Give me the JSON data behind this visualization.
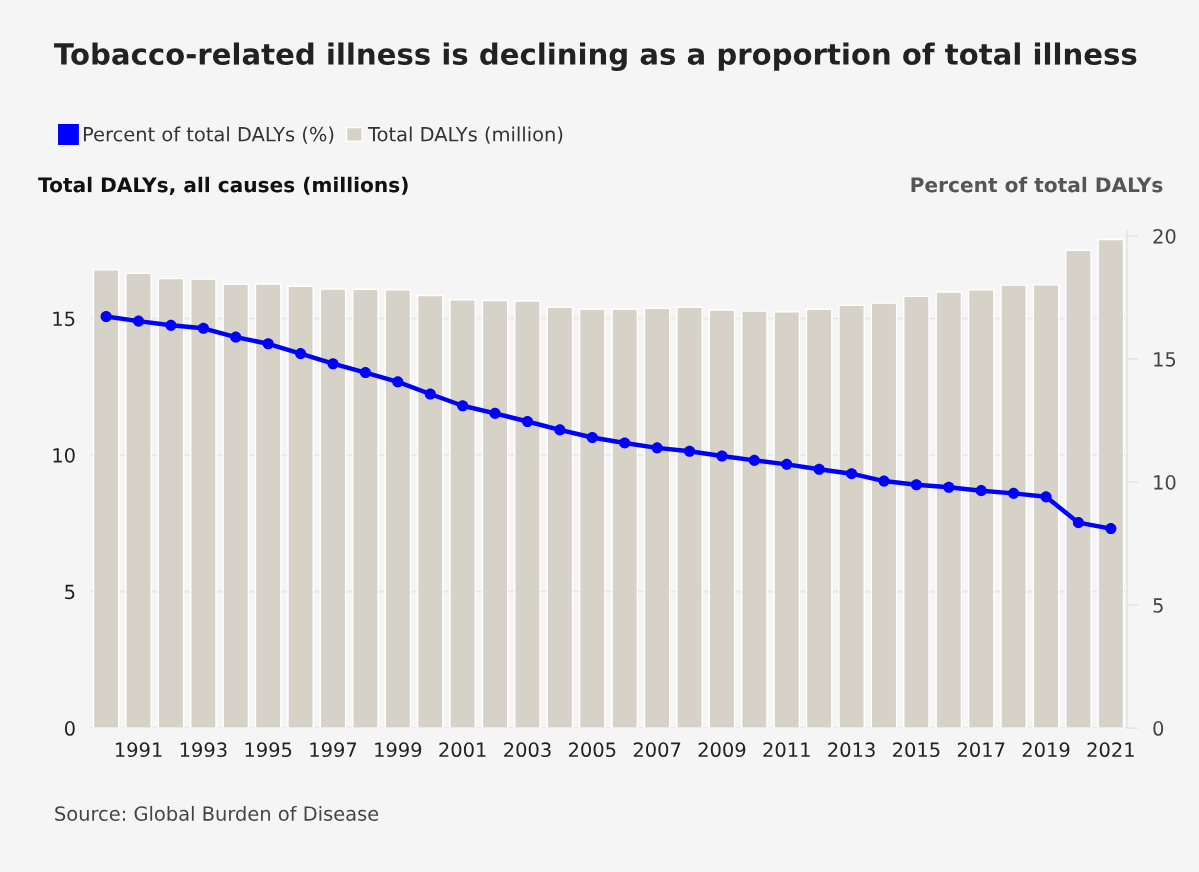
{
  "chart_data": {
    "type": "bar",
    "title": "Tobacco-related illness is declining as a proportion of total illness",
    "ylabel": "Total DALYs, all causes (millions)",
    "y2label": "Percent of total DALYs",
    "x": [
      1990,
      1991,
      1992,
      1993,
      1994,
      1995,
      1996,
      1997,
      1998,
      1999,
      2000,
      2001,
      2002,
      2003,
      2004,
      2005,
      2006,
      2007,
      2008,
      2009,
      2010,
      2011,
      2012,
      2013,
      2014,
      2015,
      2016,
      2017,
      2018,
      2019,
      2020,
      2021
    ],
    "xlim": [
      1989.5,
      2021.5
    ],
    "xticks": [
      1991,
      1993,
      1995,
      1997,
      1999,
      2001,
      2003,
      2005,
      2007,
      2009,
      2011,
      2013,
      2015,
      2017,
      2019,
      2021
    ],
    "ylim": [
      0,
      18.2
    ],
    "yticks": [
      0,
      5,
      10,
      15
    ],
    "y2lim": [
      0,
      20.2
    ],
    "y2ticks": [
      0,
      5,
      10,
      15,
      20
    ],
    "series": [
      {
        "name": "Percent of total DALYs (%)",
        "type": "line",
        "axis": "y2",
        "color": "#0000ff",
        "values": [
          16.73,
          16.54,
          16.37,
          16.25,
          15.89,
          15.62,
          15.22,
          14.81,
          14.45,
          14.07,
          13.58,
          13.1,
          12.79,
          12.46,
          12.12,
          11.81,
          11.59,
          11.39,
          11.25,
          11.06,
          10.88,
          10.72,
          10.52,
          10.34,
          10.04,
          9.89,
          9.79,
          9.65,
          9.54,
          9.4,
          8.35,
          8.11
        ]
      },
      {
        "name": "Total DALYs (million)",
        "color": "#d7d2c8",
        "values": [
          16.78,
          16.65,
          16.46,
          16.44,
          16.25,
          16.26,
          16.18,
          16.08,
          16.07,
          16.05,
          15.84,
          15.68,
          15.66,
          15.64,
          15.41,
          15.34,
          15.34,
          15.37,
          15.41,
          15.31,
          15.27,
          15.24,
          15.34,
          15.48,
          15.56,
          15.81,
          15.97,
          16.05,
          16.22,
          16.23,
          17.5,
          17.89
        ]
      }
    ],
    "marker": "circle",
    "grid": "y",
    "legend": "top left",
    "annotations": [
      "Source: Global Burden of Disease"
    ]
  }
}
